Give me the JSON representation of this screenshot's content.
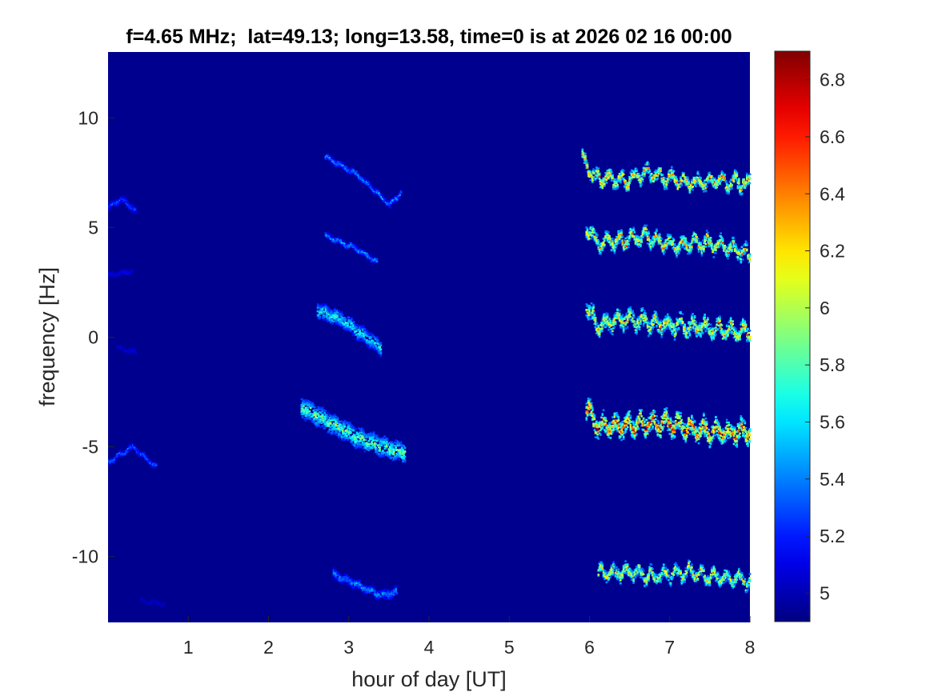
{
  "chart_data": {
    "type": "heatmap",
    "title": "f=4.65 MHz;  lat=49.13; long=13.58, time=0 is at 2026 02 16 00:00",
    "xlabel": "hour of day [UT]",
    "ylabel": "frequency [Hz]",
    "xlim": [
      0,
      8
    ],
    "ylim": [
      -13,
      13
    ],
    "xticks": [
      1,
      2,
      3,
      4,
      5,
      6,
      7,
      8
    ],
    "yticks": [
      -10,
      -5,
      0,
      5,
      10
    ],
    "colorbar": {
      "colormap": "jet",
      "clim": [
        4.9,
        6.9
      ],
      "ticks": [
        5,
        5.2,
        5.4,
        5.6,
        5.8,
        6,
        6.2,
        6.4,
        6.6,
        6.8
      ]
    },
    "background_value": 4.9,
    "traces": [
      {
        "points": [
          [
            0.0,
            5.9
          ],
          [
            0.15,
            6.3
          ],
          [
            0.35,
            5.7
          ]
        ],
        "peak": 5.4,
        "spread": 0.15
      },
      {
        "points": [
          [
            0.0,
            2.8
          ],
          [
            0.3,
            3.0
          ]
        ],
        "peak": 5.2,
        "spread": 0.1
      },
      {
        "points": [
          [
            0.1,
            -0.5
          ],
          [
            0.35,
            -0.7
          ]
        ],
        "peak": 5.15,
        "spread": 0.1
      },
      {
        "points": [
          [
            0.0,
            -5.7
          ],
          [
            0.3,
            -5.0
          ],
          [
            0.6,
            -6.0
          ]
        ],
        "peak": 5.5,
        "spread": 0.12
      },
      {
        "points": [
          [
            0.4,
            -12.0
          ],
          [
            0.7,
            -12.2
          ]
        ],
        "peak": 5.1,
        "spread": 0.1
      },
      {
        "points": [
          [
            2.7,
            8.2
          ],
          [
            3.1,
            7.4
          ],
          [
            3.5,
            6.0
          ],
          [
            3.65,
            6.6
          ]
        ],
        "peak": 5.6,
        "spread": 0.12
      },
      {
        "points": [
          [
            2.7,
            4.6
          ],
          [
            3.1,
            4.0
          ],
          [
            3.35,
            3.4
          ]
        ],
        "peak": 5.6,
        "spread": 0.12
      },
      {
        "points": [
          [
            2.6,
            1.2
          ],
          [
            2.9,
            0.8
          ],
          [
            3.2,
            0.0
          ],
          [
            3.4,
            -0.5
          ]
        ],
        "peak": 5.9,
        "spread": 0.35
      },
      {
        "points": [
          [
            2.4,
            -3.2
          ],
          [
            2.8,
            -4.0
          ],
          [
            3.1,
            -4.6
          ],
          [
            3.4,
            -5.0
          ],
          [
            3.7,
            -5.3
          ]
        ],
        "peak": 6.1,
        "spread": 0.45
      },
      {
        "points": [
          [
            2.8,
            -10.8
          ],
          [
            3.1,
            -11.3
          ],
          [
            3.4,
            -11.8
          ],
          [
            3.6,
            -11.6
          ]
        ],
        "peak": 5.6,
        "spread": 0.2
      },
      {
        "points": [
          [
            5.9,
            8.1
          ],
          [
            6.05,
            7.3
          ],
          [
            6.4,
            7.1
          ],
          [
            6.7,
            7.5
          ],
          [
            7.0,
            7.2
          ],
          [
            7.3,
            7.0
          ],
          [
            7.6,
            7.1
          ],
          [
            8.0,
            7.0
          ]
        ],
        "peak": 6.7,
        "spread": 0.22,
        "wiggle": 0.45
      },
      {
        "points": [
          [
            5.95,
            5.0
          ],
          [
            6.1,
            4.3
          ],
          [
            6.4,
            4.4
          ],
          [
            6.7,
            4.6
          ],
          [
            7.0,
            4.2
          ],
          [
            7.4,
            4.3
          ],
          [
            7.7,
            4.1
          ],
          [
            8.0,
            3.7
          ]
        ],
        "peak": 6.6,
        "spread": 0.25,
        "wiggle": 0.45
      },
      {
        "points": [
          [
            5.95,
            1.3
          ],
          [
            6.1,
            0.5
          ],
          [
            6.4,
            0.8
          ],
          [
            6.8,
            0.6
          ],
          [
            7.2,
            0.5
          ],
          [
            7.5,
            0.4
          ],
          [
            8.0,
            0.2
          ]
        ],
        "peak": 6.6,
        "spread": 0.3,
        "wiggle": 0.5
      },
      {
        "points": [
          [
            5.95,
            -3.2
          ],
          [
            6.1,
            -4.1
          ],
          [
            6.5,
            -4.0
          ],
          [
            6.9,
            -3.9
          ],
          [
            7.3,
            -4.2
          ],
          [
            7.7,
            -4.4
          ],
          [
            8.0,
            -4.3
          ]
        ],
        "peak": 6.9,
        "spread": 0.38,
        "wiggle": 0.5
      },
      {
        "points": [
          [
            6.1,
            -10.8
          ],
          [
            6.4,
            -10.7
          ],
          [
            6.8,
            -10.9
          ],
          [
            7.2,
            -10.7
          ],
          [
            7.6,
            -11.0
          ],
          [
            8.0,
            -11.1
          ]
        ],
        "peak": 6.5,
        "spread": 0.22,
        "wiggle": 0.45
      }
    ]
  }
}
